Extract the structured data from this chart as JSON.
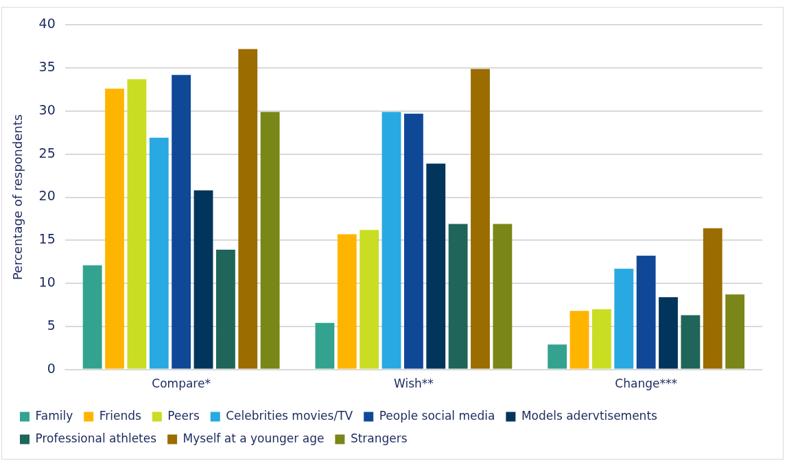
{
  "chart_data": {
    "type": "bar",
    "ylabel": "Percentage of respondents",
    "categories": [
      "Compare*",
      "Wish**",
      "Change***"
    ],
    "series": [
      {
        "name": "Family",
        "color": "#33a390",
        "values": [
          12.1,
          5.4,
          2.9
        ]
      },
      {
        "name": "Friends",
        "color": "#ffb500",
        "values": [
          32.6,
          15.7,
          6.8
        ]
      },
      {
        "name": "Peers",
        "color": "#c9dd23",
        "values": [
          33.7,
          16.2,
          7.0
        ]
      },
      {
        "name": "Celebrities movies/TV",
        "color": "#29a9e1",
        "values": [
          26.9,
          29.9,
          11.7
        ]
      },
      {
        "name": "People social media",
        "color": "#104898",
        "values": [
          34.2,
          29.7,
          13.2
        ]
      },
      {
        "name": "Models adervtisements",
        "color": "#02355c",
        "values": [
          20.8,
          23.9,
          8.4
        ]
      },
      {
        "name": "Professional athletes",
        "color": "#1f655a",
        "values": [
          13.9,
          16.9,
          6.3
        ]
      },
      {
        "name": "Myself at a younger age",
        "color": "#9b6c00",
        "values": [
          37.2,
          34.9,
          16.4
        ]
      },
      {
        "name": "Strangers",
        "color": "#7a8617",
        "values": [
          29.9,
          16.9,
          8.7
        ]
      }
    ],
    "ylim": [
      0,
      40
    ],
    "yticks": [
      0,
      5,
      10,
      15,
      20,
      25,
      30,
      35,
      40
    ],
    "grid": "y",
    "legend": "bottom"
  }
}
